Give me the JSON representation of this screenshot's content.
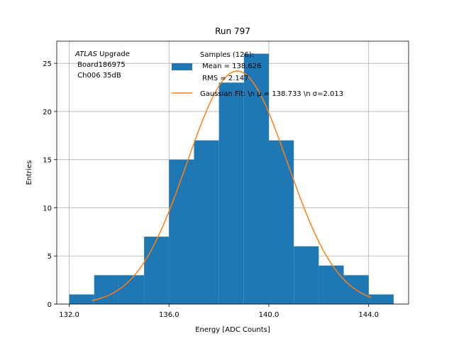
{
  "chart_data": {
    "type": "bar",
    "title": "Run 797",
    "xlabel": "Energy [ADC Counts]",
    "ylabel": "Entries",
    "xlim": [
      131.5,
      145.6
    ],
    "ylim": [
      0,
      27.3
    ],
    "xticks": [
      132.0,
      136.0,
      140.0,
      144.0
    ],
    "xtick_labels": [
      "132.0",
      "136.0",
      "140.0",
      "144.0"
    ],
    "yticks": [
      0,
      5,
      10,
      15,
      20,
      25
    ],
    "ytick_labels": [
      "0",
      "5",
      "10",
      "15",
      "20",
      "25"
    ],
    "grid": true,
    "histogram": {
      "bin_edges": [
        132,
        133,
        134,
        135,
        136,
        137,
        138,
        139,
        140,
        141,
        142,
        143,
        144,
        145
      ],
      "counts": [
        1,
        3,
        3,
        7,
        15,
        17,
        23,
        26,
        17,
        6,
        4,
        3,
        1
      ],
      "color": "#1f77b4"
    },
    "fit": {
      "type": "gaussian",
      "amplitude": 24.2,
      "mu": 138.733,
      "sigma": 2.013,
      "x_range": [
        132.9,
        144.1
      ],
      "color": "#ff7f0e"
    },
    "annotation_lines": [
      "ATLAS Upgrade",
      " Board186975",
      " Ch006 35dB"
    ],
    "legend": {
      "placement": "top-right",
      "samples_lines": [
        "Samples (126):",
        " Mean = 138.626",
        " RMS = 2.147"
      ],
      "fit_label": "Gaussian Fit: \\n μ = 138.733 \\n σ=2.013"
    }
  }
}
